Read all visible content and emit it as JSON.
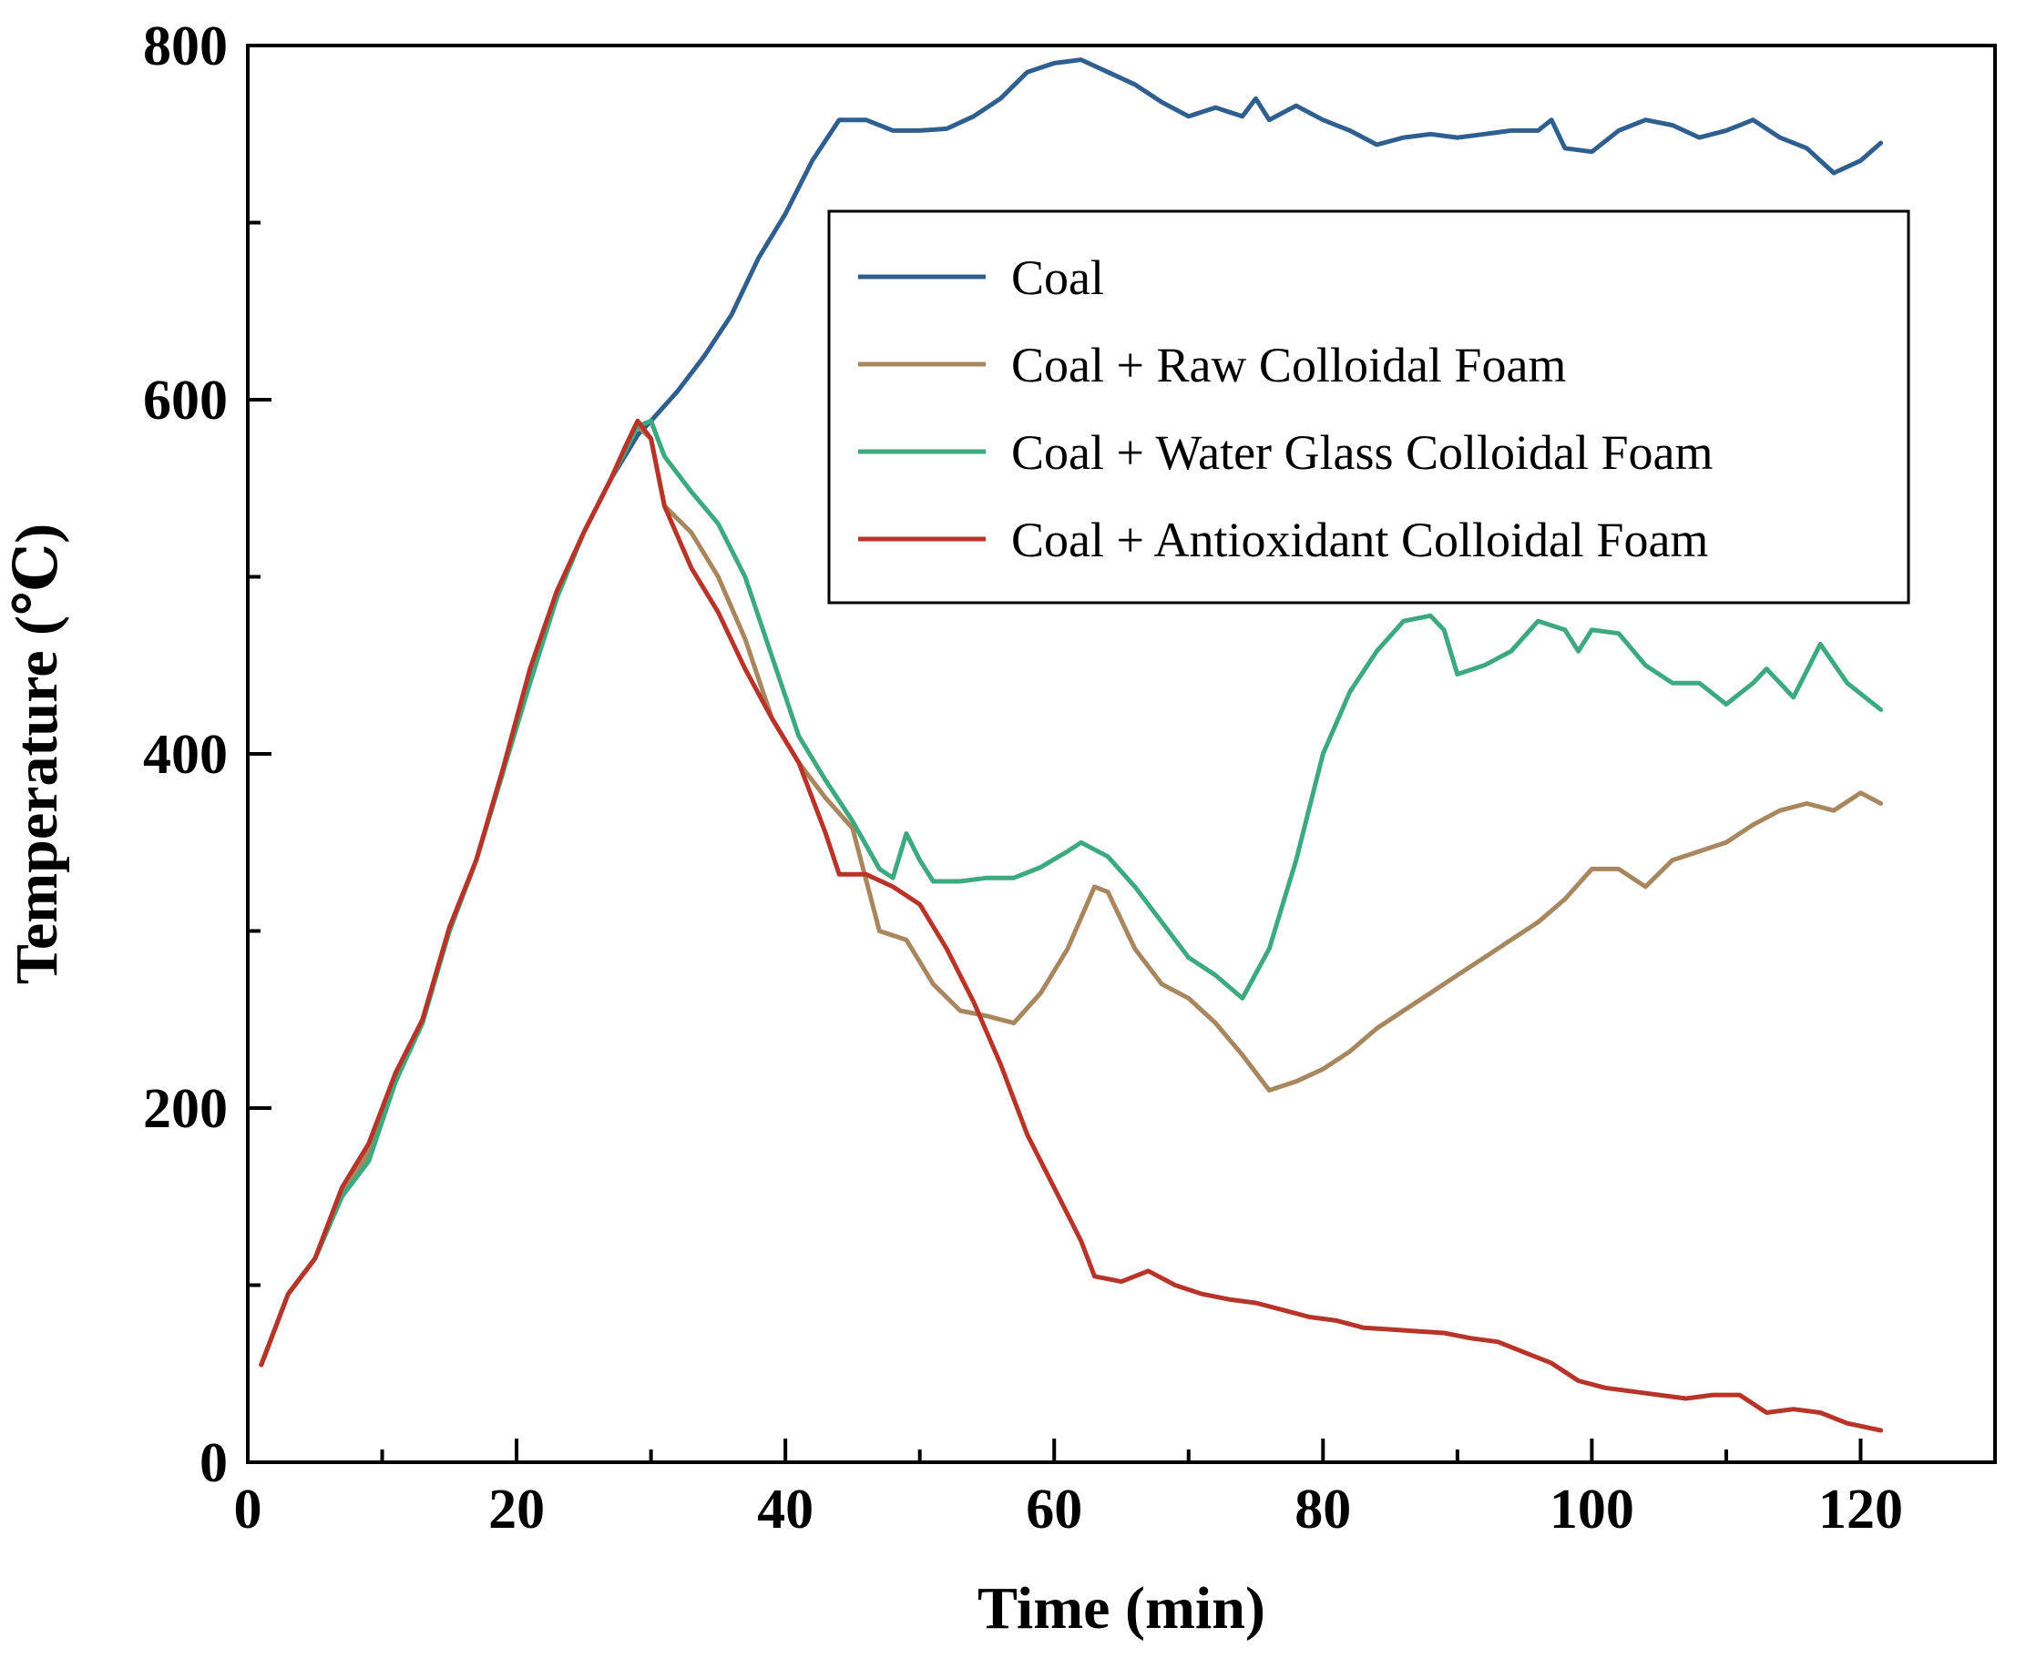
{
  "chart_data": {
    "type": "line",
    "title": "",
    "xlabel": "Time (min)",
    "ylabel": "Temperature (℃)",
    "xlim": [
      0,
      130
    ],
    "ylim": [
      0,
      800
    ],
    "xticks": [
      0,
      20,
      40,
      60,
      80,
      100,
      120
    ],
    "yticks": [
      0,
      200,
      400,
      600,
      800
    ],
    "legend_position": "top-right",
    "grid": false,
    "series": [
      {
        "name": "Coal",
        "color": "#2f5f8f",
        "points": [
          [
            1,
            55
          ],
          [
            3,
            95
          ],
          [
            5,
            115
          ],
          [
            7,
            150
          ],
          [
            9,
            175
          ],
          [
            11,
            215
          ],
          [
            13,
            250
          ],
          [
            15,
            300
          ],
          [
            17,
            340
          ],
          [
            19,
            390
          ],
          [
            21,
            445
          ],
          [
            23,
            490
          ],
          [
            25,
            525
          ],
          [
            27,
            555
          ],
          [
            29,
            580
          ],
          [
            30,
            588
          ],
          [
            32,
            605
          ],
          [
            34,
            625
          ],
          [
            36,
            648
          ],
          [
            38,
            680
          ],
          [
            40,
            705
          ],
          [
            42,
            735
          ],
          [
            44,
            758
          ],
          [
            46,
            758
          ],
          [
            48,
            752
          ],
          [
            50,
            752
          ],
          [
            52,
            753
          ],
          [
            54,
            760
          ],
          [
            56,
            770
          ],
          [
            58,
            785
          ],
          [
            60,
            790
          ],
          [
            62,
            792
          ],
          [
            64,
            785
          ],
          [
            66,
            778
          ],
          [
            68,
            768
          ],
          [
            70,
            760
          ],
          [
            72,
            765
          ],
          [
            74,
            760
          ],
          [
            75,
            770
          ],
          [
            76,
            758
          ],
          [
            78,
            766
          ],
          [
            80,
            758
          ],
          [
            82,
            752
          ],
          [
            84,
            744
          ],
          [
            86,
            748
          ],
          [
            88,
            750
          ],
          [
            90,
            748
          ],
          [
            92,
            750
          ],
          [
            94,
            752
          ],
          [
            96,
            752
          ],
          [
            97,
            758
          ],
          [
            98,
            742
          ],
          [
            100,
            740
          ],
          [
            102,
            752
          ],
          [
            104,
            758
          ],
          [
            106,
            755
          ],
          [
            108,
            748
          ],
          [
            110,
            752
          ],
          [
            112,
            758
          ],
          [
            114,
            748
          ],
          [
            116,
            742
          ],
          [
            118,
            728
          ],
          [
            120,
            735
          ],
          [
            121.5,
            745
          ]
        ]
      },
      {
        "name": "Coal + Raw Colloidal Foam",
        "color": "#a8865e",
        "points": [
          [
            1,
            55
          ],
          [
            3,
            95
          ],
          [
            5,
            115
          ],
          [
            7,
            150
          ],
          [
            9,
            175
          ],
          [
            11,
            215
          ],
          [
            13,
            250
          ],
          [
            15,
            300
          ],
          [
            17,
            340
          ],
          [
            19,
            390
          ],
          [
            21,
            445
          ],
          [
            23,
            490
          ],
          [
            25,
            525
          ],
          [
            27,
            555
          ],
          [
            29,
            585
          ],
          [
            30,
            578
          ],
          [
            31,
            540
          ],
          [
            33,
            525
          ],
          [
            35,
            500
          ],
          [
            37,
            465
          ],
          [
            39,
            420
          ],
          [
            41,
            395
          ],
          [
            43,
            375
          ],
          [
            45,
            358
          ],
          [
            47,
            300
          ],
          [
            49,
            295
          ],
          [
            51,
            270
          ],
          [
            53,
            255
          ],
          [
            55,
            252
          ],
          [
            57,
            248
          ],
          [
            59,
            265
          ],
          [
            61,
            290
          ],
          [
            63,
            325
          ],
          [
            64,
            322
          ],
          [
            66,
            290
          ],
          [
            68,
            270
          ],
          [
            70,
            262
          ],
          [
            72,
            248
          ],
          [
            74,
            230
          ],
          [
            76,
            210
          ],
          [
            78,
            215
          ],
          [
            80,
            222
          ],
          [
            82,
            232
          ],
          [
            84,
            245
          ],
          [
            86,
            255
          ],
          [
            88,
            265
          ],
          [
            90,
            275
          ],
          [
            92,
            285
          ],
          [
            94,
            295
          ],
          [
            96,
            305
          ],
          [
            98,
            318
          ],
          [
            100,
            335
          ],
          [
            102,
            335
          ],
          [
            104,
            325
          ],
          [
            106,
            340
          ],
          [
            108,
            345
          ],
          [
            110,
            350
          ],
          [
            112,
            360
          ],
          [
            114,
            368
          ],
          [
            116,
            372
          ],
          [
            118,
            368
          ],
          [
            120,
            378
          ],
          [
            121.5,
            372
          ]
        ]
      },
      {
        "name": "Coal + Water Glass Colloidal Foam",
        "color": "#3caa7e",
        "points": [
          [
            1,
            55
          ],
          [
            3,
            95
          ],
          [
            5,
            115
          ],
          [
            7,
            150
          ],
          [
            9,
            170
          ],
          [
            11,
            215
          ],
          [
            13,
            248
          ],
          [
            15,
            300
          ],
          [
            17,
            340
          ],
          [
            19,
            390
          ],
          [
            21,
            440
          ],
          [
            23,
            488
          ],
          [
            25,
            525
          ],
          [
            27,
            555
          ],
          [
            29,
            585
          ],
          [
            30,
            588
          ],
          [
            31,
            568
          ],
          [
            33,
            548
          ],
          [
            35,
            530
          ],
          [
            37,
            500
          ],
          [
            39,
            455
          ],
          [
            41,
            410
          ],
          [
            43,
            385
          ],
          [
            45,
            362
          ],
          [
            47,
            335
          ],
          [
            48,
            330
          ],
          [
            49,
            355
          ],
          [
            50,
            340
          ],
          [
            51,
            328
          ],
          [
            53,
            328
          ],
          [
            55,
            330
          ],
          [
            57,
            330
          ],
          [
            59,
            336
          ],
          [
            61,
            345
          ],
          [
            62,
            350
          ],
          [
            64,
            342
          ],
          [
            66,
            325
          ],
          [
            68,
            305
          ],
          [
            70,
            285
          ],
          [
            72,
            275
          ],
          [
            74,
            262
          ],
          [
            76,
            290
          ],
          [
            78,
            340
          ],
          [
            80,
            400
          ],
          [
            82,
            435
          ],
          [
            84,
            458
          ],
          [
            86,
            475
          ],
          [
            88,
            478
          ],
          [
            89,
            470
          ],
          [
            90,
            445
          ],
          [
            92,
            450
          ],
          [
            94,
            458
          ],
          [
            96,
            475
          ],
          [
            98,
            470
          ],
          [
            99,
            458
          ],
          [
            100,
            470
          ],
          [
            102,
            468
          ],
          [
            104,
            450
          ],
          [
            106,
            440
          ],
          [
            108,
            440
          ],
          [
            110,
            428
          ],
          [
            112,
            440
          ],
          [
            113,
            448
          ],
          [
            115,
            432
          ],
          [
            117,
            462
          ],
          [
            119,
            440
          ],
          [
            121.5,
            425
          ]
        ]
      },
      {
        "name": "Coal + Antioxidant Colloidal Foam",
        "color": "#b83428",
        "points": [
          [
            1,
            55
          ],
          [
            3,
            95
          ],
          [
            5,
            115
          ],
          [
            7,
            155
          ],
          [
            9,
            180
          ],
          [
            11,
            220
          ],
          [
            13,
            250
          ],
          [
            15,
            302
          ],
          [
            17,
            340
          ],
          [
            19,
            392
          ],
          [
            21,
            448
          ],
          [
            23,
            492
          ],
          [
            25,
            525
          ],
          [
            27,
            555
          ],
          [
            28,
            572
          ],
          [
            29,
            588
          ],
          [
            30,
            578
          ],
          [
            31,
            540
          ],
          [
            33,
            505
          ],
          [
            35,
            480
          ],
          [
            37,
            448
          ],
          [
            39,
            420
          ],
          [
            41,
            395
          ],
          [
            43,
            355
          ],
          [
            44,
            332
          ],
          [
            46,
            332
          ],
          [
            48,
            325
          ],
          [
            50,
            315
          ],
          [
            52,
            290
          ],
          [
            54,
            260
          ],
          [
            56,
            225
          ],
          [
            58,
            185
          ],
          [
            60,
            155
          ],
          [
            62,
            125
          ],
          [
            63,
            105
          ],
          [
            65,
            102
          ],
          [
            67,
            108
          ],
          [
            69,
            100
          ],
          [
            71,
            95
          ],
          [
            73,
            92
          ],
          [
            75,
            90
          ],
          [
            77,
            86
          ],
          [
            79,
            82
          ],
          [
            81,
            80
          ],
          [
            83,
            76
          ],
          [
            85,
            75
          ],
          [
            87,
            74
          ],
          [
            89,
            73
          ],
          [
            91,
            70
          ],
          [
            93,
            68
          ],
          [
            95,
            62
          ],
          [
            97,
            56
          ],
          [
            99,
            46
          ],
          [
            101,
            42
          ],
          [
            103,
            40
          ],
          [
            105,
            38
          ],
          [
            107,
            36
          ],
          [
            109,
            38
          ],
          [
            111,
            38
          ],
          [
            113,
            28
          ],
          [
            115,
            30
          ],
          [
            117,
            28
          ],
          [
            119,
            22
          ],
          [
            121.5,
            18
          ]
        ]
      }
    ]
  }
}
